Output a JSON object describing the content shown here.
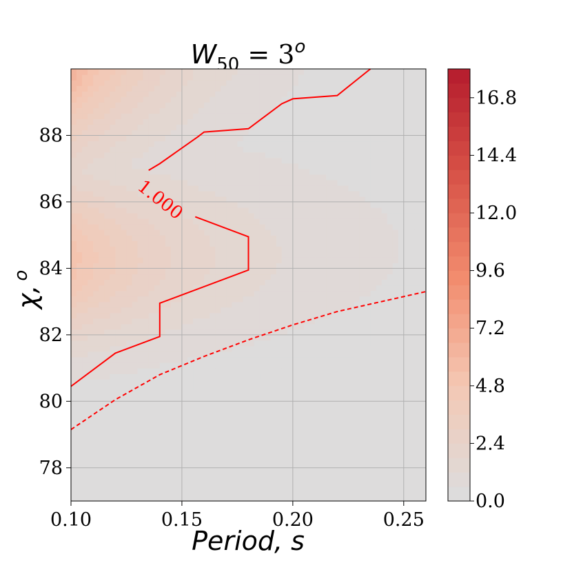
{
  "chart_data": {
    "type": "contour",
    "title": {
      "base": "W",
      "sub": "50",
      "eq": " = 3",
      "sup": "o"
    },
    "xlabel": "Period,  s",
    "ylabel": {
      "base": "χ,",
      "sup": "o"
    },
    "xlim": [
      0.1,
      0.26
    ],
    "ylim": [
      77,
      90
    ],
    "xticks": [
      0.1,
      0.15,
      0.2,
      0.25
    ],
    "xtick_labels": [
      "0.10",
      "0.15",
      "0.20",
      "0.25"
    ],
    "yticks": [
      78,
      80,
      82,
      84,
      86,
      88
    ],
    "ytick_labels": [
      "78",
      "80",
      "82",
      "84",
      "86",
      "88"
    ],
    "grid": true,
    "colormap": "coolwarm-reds",
    "colors": {
      "low": "#dddcdc",
      "mid": "#f4a582",
      "high": "#b2182b",
      "contour": "#ff0000",
      "grid": "#b0b0b0"
    },
    "colorbar": {
      "min": 0.0,
      "max": 18.0,
      "ticks": [
        0.0,
        2.4,
        4.8,
        7.2,
        9.6,
        12.0,
        14.4,
        16.8
      ],
      "tick_labels": [
        "0.0",
        "2.4",
        "4.8",
        "7.2",
        "9.6",
        "12.0",
        "14.4",
        "16.8"
      ]
    },
    "contours": [
      {
        "level": 1.0,
        "label": "1.000",
        "style": "solid",
        "points": [
          [
            0.1,
            80.45
          ],
          [
            0.12,
            81.45
          ],
          [
            0.14,
            81.95
          ],
          [
            0.14,
            82.95
          ],
          [
            0.18,
            83.95
          ],
          [
            0.18,
            84.95
          ],
          [
            0.156,
            85.55
          ]
        ]
      },
      {
        "level": 1.0,
        "label": "",
        "style": "solid",
        "points": [
          [
            0.135,
            86.95
          ],
          [
            0.14,
            87.15
          ],
          [
            0.157,
            87.95
          ],
          [
            0.16,
            88.1
          ],
          [
            0.18,
            88.2
          ],
          [
            0.195,
            88.95
          ],
          [
            0.2,
            89.1
          ],
          [
            0.22,
            89.2
          ],
          [
            0.235,
            90.0
          ]
        ]
      },
      {
        "level": 0.0,
        "label": "",
        "style": "dashed",
        "points": [
          [
            0.1,
            79.15
          ],
          [
            0.12,
            80.05
          ],
          [
            0.14,
            80.8
          ],
          [
            0.16,
            81.35
          ],
          [
            0.18,
            81.85
          ],
          [
            0.2,
            82.3
          ],
          [
            0.22,
            82.7
          ],
          [
            0.24,
            83.0
          ],
          [
            0.26,
            83.3
          ]
        ]
      }
    ],
    "field_note": "values high at top-left (short period, large chi), decreasing toward lower-right"
  }
}
